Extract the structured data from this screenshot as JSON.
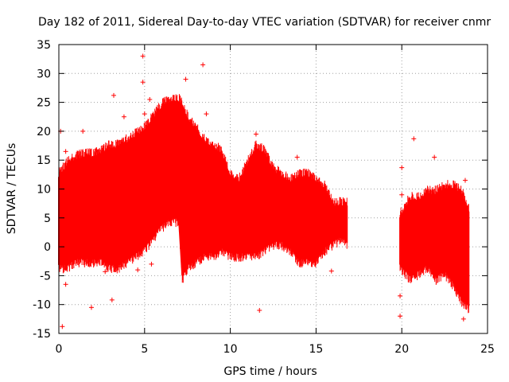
{
  "chart_data": {
    "type": "scatter",
    "title": "Day 182 of 2011, Sidereal Day-to-day VTEC variation (SDTVAR) for receiver cnmr",
    "xlabel": "GPS time / hours",
    "ylabel": "SDTVAR / TECUs",
    "xlim": [
      0,
      25
    ],
    "ylim": [
      -15,
      35
    ],
    "xticks": [
      0,
      5,
      10,
      15,
      20,
      25
    ],
    "yticks": [
      -15,
      -10,
      -5,
      0,
      5,
      10,
      15,
      20,
      25,
      30,
      35
    ],
    "grid": true,
    "marker": "+",
    "color": "#ff0000",
    "series": [
      {
        "name": "SDTVAR",
        "envelope": [
          {
            "x": 0.0,
            "low": -3,
            "high": 12
          },
          {
            "x": 0.5,
            "low": -3,
            "high": 14
          },
          {
            "x": 1.0,
            "low": -2,
            "high": 15
          },
          {
            "x": 1.5,
            "low": -2,
            "high": 15.5
          },
          {
            "x": 2.0,
            "low": -2,
            "high": 15.5
          },
          {
            "x": 2.5,
            "low": -2,
            "high": 16
          },
          {
            "x": 3.0,
            "low": -3,
            "high": 17
          },
          {
            "x": 3.5,
            "low": -3,
            "high": 17
          },
          {
            "x": 4.0,
            "low": -2,
            "high": 18
          },
          {
            "x": 4.5,
            "low": -1,
            "high": 19
          },
          {
            "x": 5.0,
            "low": 0,
            "high": 20
          },
          {
            "x": 5.5,
            "low": 2,
            "high": 22
          },
          {
            "x": 6.0,
            "low": 4,
            "high": 24
          },
          {
            "x": 6.5,
            "low": 5,
            "high": 25
          },
          {
            "x": 7.0,
            "low": 5,
            "high": 25
          },
          {
            "x": 7.2,
            "low": -5,
            "high": 24
          },
          {
            "x": 7.5,
            "low": -3,
            "high": 22
          },
          {
            "x": 8.0,
            "low": -2,
            "high": 20
          },
          {
            "x": 8.5,
            "low": -1,
            "high": 18
          },
          {
            "x": 9.0,
            "low": -1,
            "high": 17
          },
          {
            "x": 9.5,
            "low": 0,
            "high": 16
          },
          {
            "x": 10.0,
            "low": -1,
            "high": 12
          },
          {
            "x": 10.5,
            "low": -1,
            "high": 11
          },
          {
            "x": 11.0,
            "low": -1,
            "high": 14
          },
          {
            "x": 11.5,
            "low": -1,
            "high": 17
          },
          {
            "x": 12.0,
            "low": 0,
            "high": 16
          },
          {
            "x": 12.5,
            "low": 1,
            "high": 13
          },
          {
            "x": 13.0,
            "low": 1,
            "high": 12
          },
          {
            "x": 13.5,
            "low": 0,
            "high": 11
          },
          {
            "x": 14.0,
            "low": -2,
            "high": 12
          },
          {
            "x": 14.5,
            "low": -2,
            "high": 12
          },
          {
            "x": 15.0,
            "low": -2,
            "high": 11
          },
          {
            "x": 15.5,
            "low": 0,
            "high": 10
          },
          {
            "x": 16.0,
            "low": 1,
            "high": 7
          },
          {
            "x": 16.5,
            "low": 2,
            "high": 7
          },
          {
            "x": 16.8,
            "low": 1,
            "high": 7
          },
          {
            "x": 19.9,
            "low": -3,
            "high": 5
          },
          {
            "x": 20.5,
            "low": -5,
            "high": 8
          },
          {
            "x": 21.0,
            "low": -4,
            "high": 8
          },
          {
            "x": 21.5,
            "low": -3,
            "high": 9
          },
          {
            "x": 22.0,
            "low": -5,
            "high": 9
          },
          {
            "x": 22.5,
            "low": -4,
            "high": 10
          },
          {
            "x": 23.0,
            "low": -6,
            "high": 10
          },
          {
            "x": 23.5,
            "low": -9,
            "high": 9
          },
          {
            "x": 23.9,
            "low": -10,
            "high": 6
          }
        ],
        "outliers": [
          {
            "x": 4.9,
            "y": 33
          },
          {
            "x": 4.9,
            "y": 28.5
          },
          {
            "x": 5.3,
            "y": 25.5
          },
          {
            "x": 5.0,
            "y": 23
          },
          {
            "x": 6.4,
            "y": 25.5
          },
          {
            "x": 7.4,
            "y": 29
          },
          {
            "x": 8.4,
            "y": 31.5
          },
          {
            "x": 8.6,
            "y": 23
          },
          {
            "x": 3.2,
            "y": 26.2
          },
          {
            "x": 3.8,
            "y": 22.5
          },
          {
            "x": 9.1,
            "y": 17.5
          },
          {
            "x": 0.1,
            "y": 20
          },
          {
            "x": 0.4,
            "y": 16.5
          },
          {
            "x": 1.4,
            "y": 20
          },
          {
            "x": 2.2,
            "y": 16.8
          },
          {
            "x": 0.2,
            "y": -13.8
          },
          {
            "x": 1.9,
            "y": -10.5
          },
          {
            "x": 3.1,
            "y": -9.2
          },
          {
            "x": 2.7,
            "y": -4.3
          },
          {
            "x": 2.9,
            "y": -3
          },
          {
            "x": 4.6,
            "y": -4
          },
          {
            "x": 5.4,
            "y": -3
          },
          {
            "x": 0.4,
            "y": -6.5
          },
          {
            "x": 11.7,
            "y": -11
          },
          {
            "x": 15.9,
            "y": -4.2
          },
          {
            "x": 20.0,
            "y": 13.7
          },
          {
            "x": 20.0,
            "y": 9
          },
          {
            "x": 19.9,
            "y": -12
          },
          {
            "x": 19.9,
            "y": -8.5
          },
          {
            "x": 20.7,
            "y": 18.7
          },
          {
            "x": 21.9,
            "y": 15.5
          },
          {
            "x": 23.7,
            "y": 11.5
          },
          {
            "x": 23.6,
            "y": -12.5
          },
          {
            "x": 11.5,
            "y": 19.5
          },
          {
            "x": 13.9,
            "y": 15.5
          }
        ]
      }
    ]
  }
}
